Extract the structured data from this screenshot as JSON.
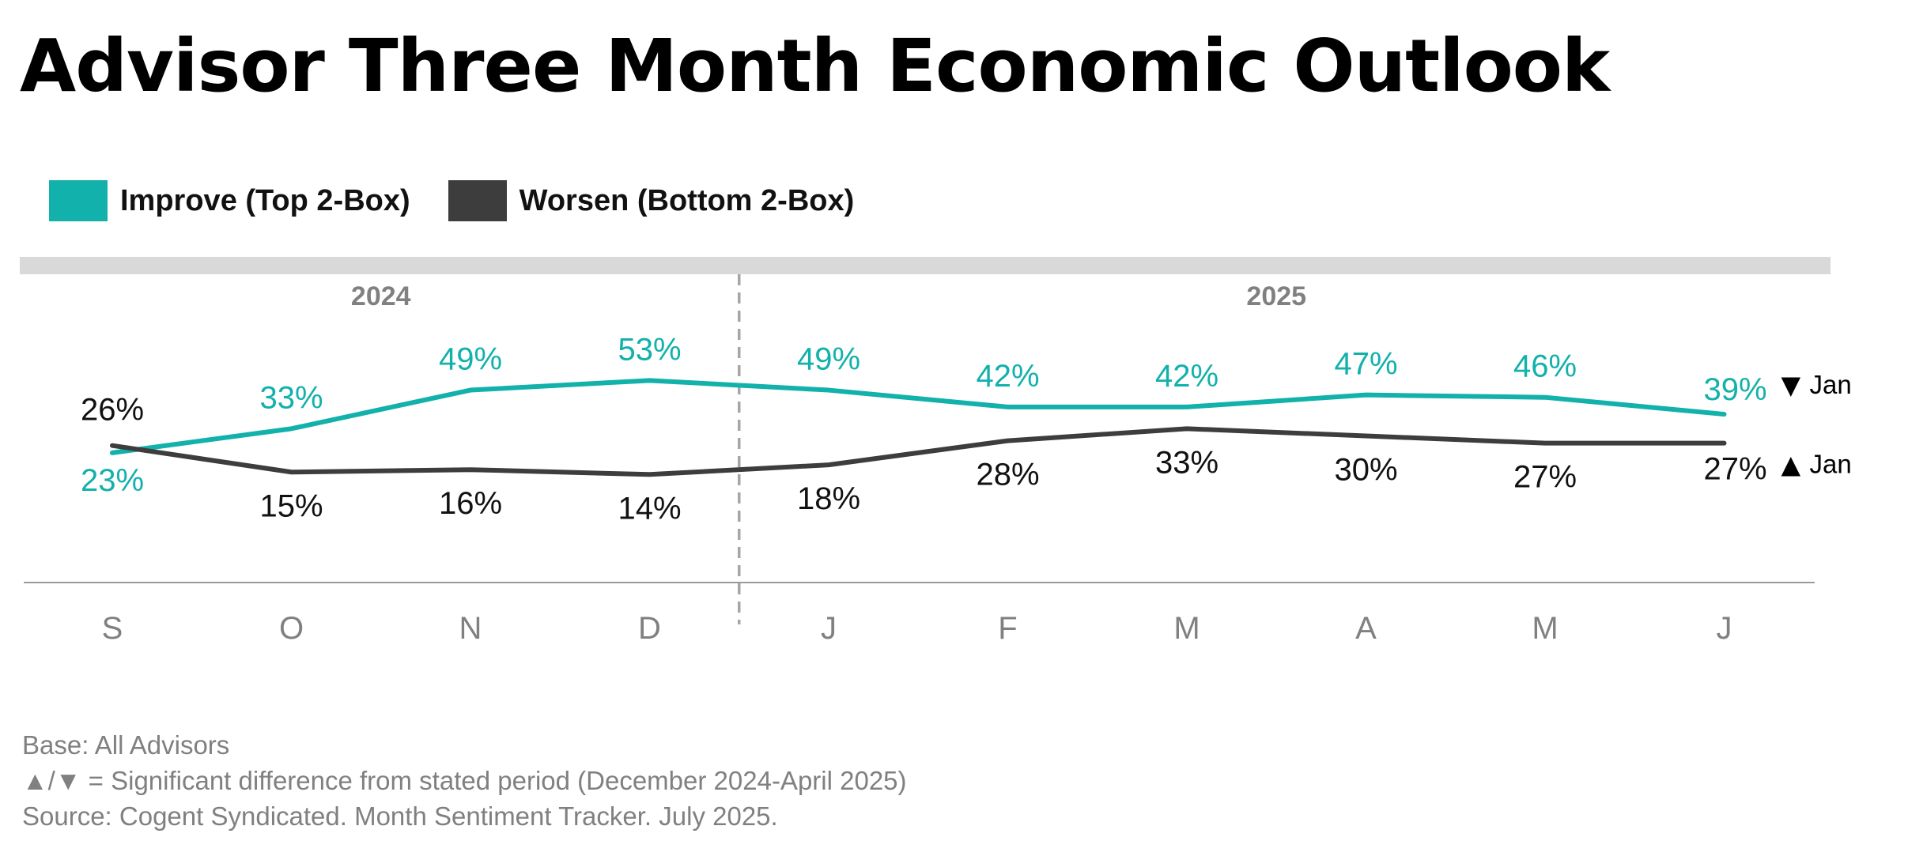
{
  "title": "Advisor Three Month Economic Outlook",
  "legend": [
    {
      "label": "Improve (Top 2-Box)",
      "color": "#12b1ab"
    },
    {
      "label": "Worsen (Bottom 2-Box)",
      "color": "#3d3d3d"
    }
  ],
  "chart_data": {
    "type": "line",
    "title": "Advisor Three Month Economic Outlook",
    "categories": [
      "S",
      "O",
      "N",
      "D",
      "J",
      "F",
      "M",
      "A",
      "M",
      "J"
    ],
    "year_groups": [
      {
        "label": "2024",
        "start": 0,
        "end": 3
      },
      {
        "label": "2025",
        "start": 4,
        "end": 9
      }
    ],
    "series": [
      {
        "name": "Improve (Top 2-Box)",
        "color": "#12b1ab",
        "values": [
          23,
          33,
          49,
          53,
          49,
          42,
          42,
          47,
          46,
          39
        ],
        "labels": [
          "23%",
          "33%",
          "49%",
          "53%",
          "49%",
          "42%",
          "42%",
          "47%",
          "46%",
          "39%"
        ],
        "final_annotation": {
          "symbol": "▼",
          "text": "Jan"
        }
      },
      {
        "name": "Worsen (Bottom 2-Box)",
        "color": "#3d3d3d",
        "values": [
          26,
          15,
          16,
          14,
          18,
          28,
          33,
          30,
          27,
          27
        ],
        "labels": [
          "26%",
          "15%",
          "16%",
          "14%",
          "18%",
          "28%",
          "33%",
          "30%",
          "27%",
          "27%"
        ],
        "final_annotation": {
          "symbol": "▲",
          "text": "Jan"
        }
      }
    ],
    "xlabel": "",
    "ylabel": "",
    "grid": false,
    "legend_position": "top-left"
  },
  "footnotes": [
    "Base: All Advisors",
    "▲/▼ = Significant difference from stated period (December 2024-April 2025)",
    "Source: Cogent Syndicated. Month Sentiment Tracker. July 2025."
  ]
}
